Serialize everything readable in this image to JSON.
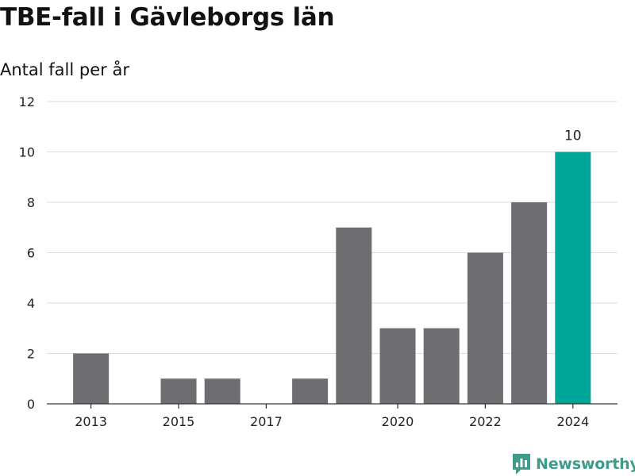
{
  "header": {
    "title": "TBE-fall i Gävleborgs län",
    "subtitle": "Antal fall per år"
  },
  "brand": {
    "name": "Newsworthy",
    "color": "#3f9c8c"
  },
  "colors": {
    "bar": "#6d6d72",
    "highlight": "#00a59a",
    "grid": "#dddddd",
    "axis": "#333333"
  },
  "chart_data": {
    "type": "bar",
    "title": "TBE-fall i Gävleborgs län",
    "subtitle": "Antal fall per år",
    "xlabel": "",
    "ylabel": "",
    "categories": [
      "2013",
      "2014",
      "2015",
      "2016",
      "2017",
      "2018",
      "2019",
      "2020",
      "2021",
      "2022",
      "2023",
      "2024"
    ],
    "values": [
      2,
      0,
      1,
      1,
      0,
      1,
      7,
      3,
      3,
      6,
      8,
      10
    ],
    "x_tick_labels": [
      "2013",
      "2015",
      "2017",
      "2020",
      "2022",
      "2024"
    ],
    "ylim": [
      0,
      12
    ],
    "y_ticks": [
      0,
      2,
      4,
      6,
      8,
      10,
      12
    ],
    "highlight_category": "2024",
    "data_labels": [
      {
        "category": "2024",
        "text": "10"
      }
    ],
    "grid": true
  }
}
